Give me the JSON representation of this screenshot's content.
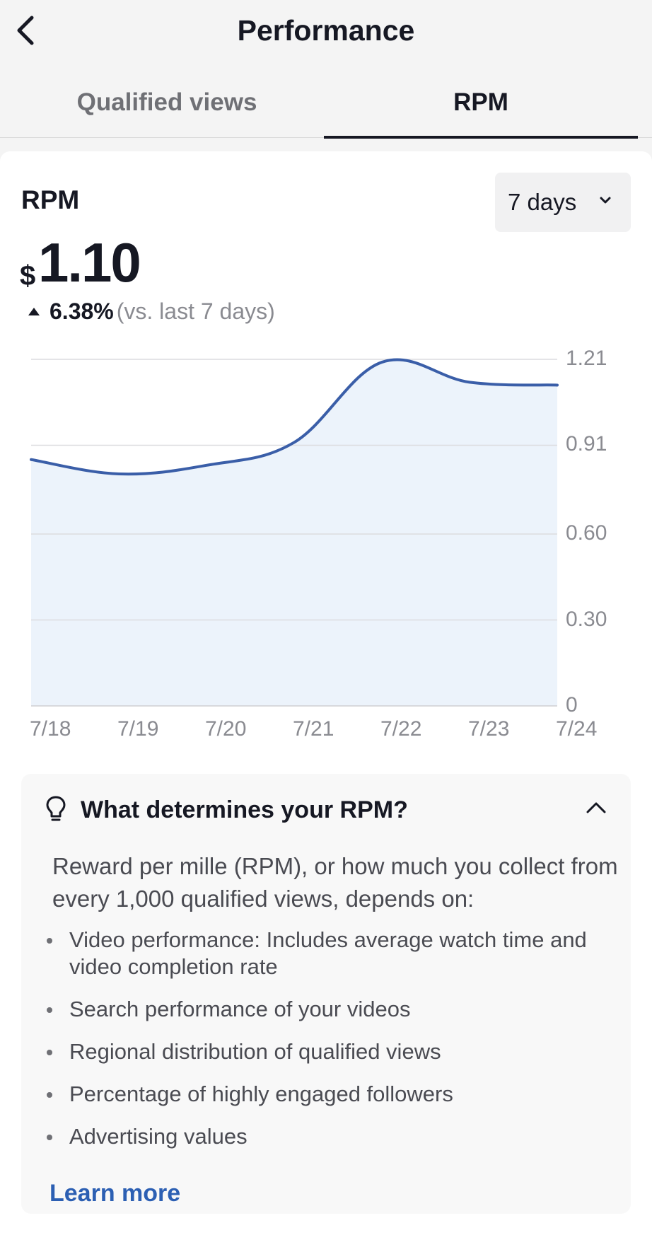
{
  "header": {
    "title": "Performance",
    "back_icon": "chevron-left-icon"
  },
  "tabs": [
    {
      "label": "Qualified views",
      "active": false
    },
    {
      "label": "RPM",
      "active": true
    }
  ],
  "metric": {
    "label": "RPM",
    "currency": "$",
    "value": "1.10",
    "delta": "6.38%",
    "delta_direction": "up",
    "comparison": "(vs. last 7 days)"
  },
  "range_selector": {
    "label": "7 days",
    "icon": "chevron-down-icon"
  },
  "chart_data": {
    "type": "area",
    "x": [
      "7/18",
      "7/19",
      "7/20",
      "7/21",
      "7/22",
      "7/23",
      "7/24"
    ],
    "values": [
      0.86,
      0.81,
      0.84,
      0.92,
      1.2,
      1.13,
      1.12
    ],
    "yticks": [
      "1.21",
      "0.91",
      "0.60",
      "0.30",
      "0"
    ],
    "ylim": [
      0,
      1.21
    ],
    "grid": true,
    "line_color": "#3a5ea8",
    "fill_color": "#eaf2fb"
  },
  "info": {
    "icon": "lightbulb-icon",
    "title": "What determines your RPM?",
    "collapse_icon": "chevron-up-icon",
    "intro": "Reward per mille (RPM), or how much you collect from every 1,000 qualified views, depends on:",
    "bullets": [
      "Video performance: Includes average watch time and video completion rate",
      "Search performance of your videos",
      "Regional distribution of qualified views",
      "Percentage of highly engaged followers",
      "Advertising values"
    ],
    "learn_more": "Learn more"
  }
}
